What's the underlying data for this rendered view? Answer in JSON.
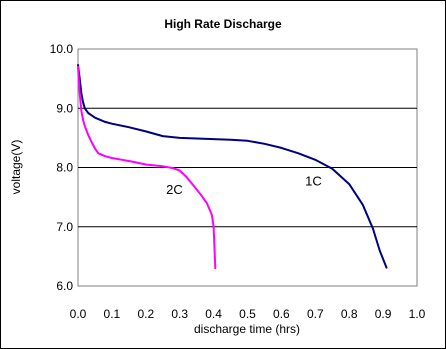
{
  "chart_data": {
    "type": "line",
    "title": "High Rate Discharge",
    "xlabel": "discharge time (hrs)",
    "ylabel": "voltage(V)",
    "xlim": [
      0.0,
      1.0
    ],
    "ylim": [
      6.0,
      10.0
    ],
    "x_ticks": [
      "0.0",
      "0.1",
      "0.2",
      "0.3",
      "0.4",
      "0.5",
      "0.6",
      "0.7",
      "0.8",
      "0.9",
      "1.0"
    ],
    "y_ticks": [
      "6.0",
      "7.0",
      "8.0",
      "9.0",
      "10.0"
    ],
    "grid": "horizontal",
    "legend": "none",
    "series": [
      {
        "name": "1C",
        "color": "#000080",
        "label_at": [
          0.67,
          7.7
        ],
        "points": [
          [
            0.0,
            9.73
          ],
          [
            0.005,
            9.5
          ],
          [
            0.01,
            9.25
          ],
          [
            0.015,
            9.1
          ],
          [
            0.02,
            9.0
          ],
          [
            0.03,
            8.92
          ],
          [
            0.05,
            8.84
          ],
          [
            0.08,
            8.77
          ],
          [
            0.1,
            8.74
          ],
          [
            0.15,
            8.68
          ],
          [
            0.2,
            8.61
          ],
          [
            0.25,
            8.53
          ],
          [
            0.3,
            8.5
          ],
          [
            0.35,
            8.49
          ],
          [
            0.4,
            8.48
          ],
          [
            0.45,
            8.47
          ],
          [
            0.5,
            8.45
          ],
          [
            0.55,
            8.4
          ],
          [
            0.6,
            8.33
          ],
          [
            0.65,
            8.24
          ],
          [
            0.7,
            8.13
          ],
          [
            0.75,
            7.98
          ],
          [
            0.8,
            7.72
          ],
          [
            0.84,
            7.37
          ],
          [
            0.87,
            6.97
          ],
          [
            0.89,
            6.6
          ],
          [
            0.91,
            6.31
          ]
        ]
      },
      {
        "name": "2C",
        "color": "#ff00ff",
        "label_at": [
          0.26,
          7.55
        ],
        "points": [
          [
            0.0,
            9.7
          ],
          [
            0.005,
            9.25
          ],
          [
            0.01,
            8.95
          ],
          [
            0.015,
            8.8
          ],
          [
            0.02,
            8.7
          ],
          [
            0.03,
            8.55
          ],
          [
            0.04,
            8.43
          ],
          [
            0.05,
            8.32
          ],
          [
            0.06,
            8.24
          ],
          [
            0.08,
            8.19
          ],
          [
            0.1,
            8.16
          ],
          [
            0.13,
            8.13
          ],
          [
            0.16,
            8.1
          ],
          [
            0.2,
            8.05
          ],
          [
            0.25,
            8.02
          ],
          [
            0.28,
            7.99
          ],
          [
            0.3,
            7.95
          ],
          [
            0.32,
            7.84
          ],
          [
            0.34,
            7.7
          ],
          [
            0.36,
            7.56
          ],
          [
            0.38,
            7.4
          ],
          [
            0.395,
            7.2
          ],
          [
            0.4,
            7.0
          ],
          [
            0.403,
            6.6
          ],
          [
            0.405,
            6.3
          ]
        ]
      }
    ]
  }
}
